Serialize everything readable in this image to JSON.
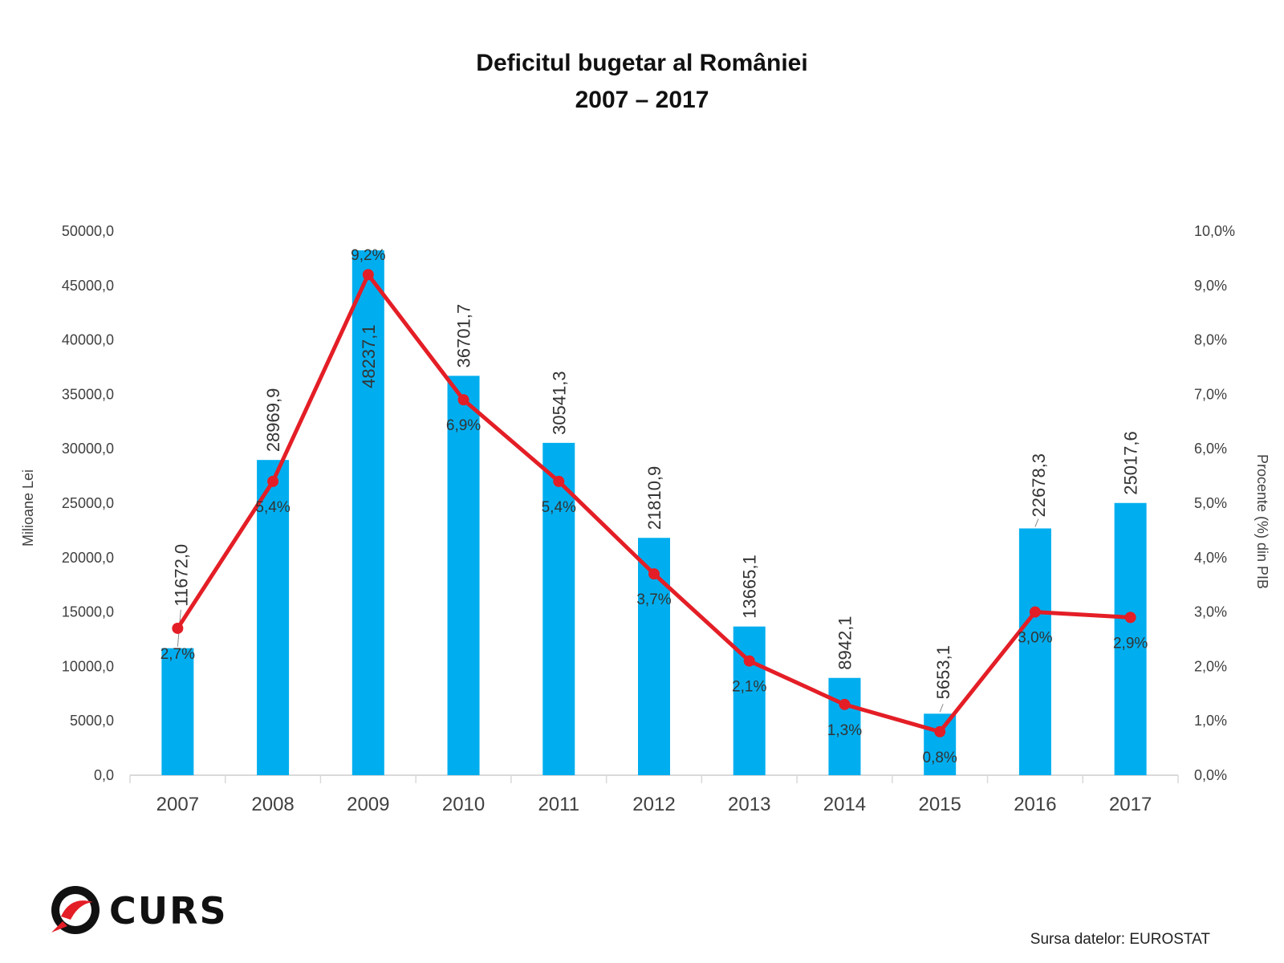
{
  "title_line1": "Deficitul bugetar al României",
  "title_line2": "2007 – 2017",
  "source_text": "Sursa datelor: EUROSTAT",
  "logo_text": "CURS",
  "colors": {
    "bar": "#00AEEF",
    "line": "#E41E26",
    "grid": "#d9d9d9",
    "text": "#404040"
  },
  "chart_data": {
    "type": "bar",
    "title": "Deficitul bugetar al României 2007 – 2017",
    "categories": [
      "2007",
      "2008",
      "2009",
      "2010",
      "2011",
      "2012",
      "2013",
      "2014",
      "2015",
      "2016",
      "2017"
    ],
    "series": [
      {
        "name": "Milioane Lei",
        "type": "bar",
        "axis": "left",
        "values": [
          11672.0,
          28969.9,
          48237.1,
          36701.7,
          30541.3,
          21810.9,
          13665.1,
          8942.1,
          5653.1,
          22678.3,
          25017.6
        ],
        "labels": [
          "11672,0",
          "28969,9",
          "48237,1",
          "36701,7",
          "30541,3",
          "21810,9",
          "13665,1",
          "8942,1",
          "5653,1",
          "22678,3",
          "25017,6"
        ]
      },
      {
        "name": "Procente (%) din PIB",
        "type": "line",
        "axis": "right",
        "values": [
          2.7,
          5.4,
          9.2,
          6.9,
          5.4,
          3.7,
          2.1,
          1.3,
          0.8,
          3.0,
          2.9
        ],
        "labels": [
          "2,7%",
          "5,4%",
          "9,2%",
          "6,9%",
          "5,4%",
          "3,7%",
          "2,1%",
          "1,3%",
          "0,8%",
          "3,0%",
          "2,9%"
        ]
      }
    ],
    "y_left": {
      "label": "Milioane Lei",
      "range": [
        0,
        50000
      ],
      "ticks": [
        "0,0",
        "5000,0",
        "10000,0",
        "15000,0",
        "20000,0",
        "25000,0",
        "30000,0",
        "35000,0",
        "40000,0",
        "45000,0",
        "50000,0"
      ]
    },
    "y_right": {
      "label": "Procente (%) din PIB",
      "range": [
        0,
        10
      ],
      "ticks": [
        "0,0%",
        "1,0%",
        "2,0%",
        "3,0%",
        "4,0%",
        "5,0%",
        "6,0%",
        "7,0%",
        "8,0%",
        "9,0%",
        "10,0%"
      ]
    }
  }
}
